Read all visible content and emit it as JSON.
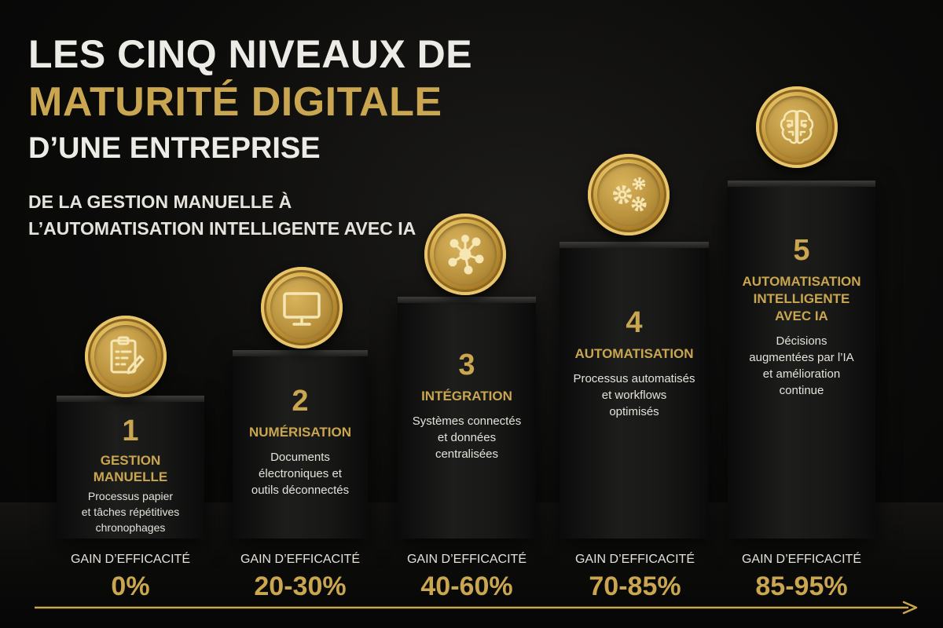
{
  "title": {
    "line1": "Les cinq niveaux de",
    "line2": "Maturité digitale",
    "line3": "d’une entreprise"
  },
  "subtitle": {
    "line1": "De la gestion manuelle à",
    "line2": "l’automatisation intelligente avec IA"
  },
  "colors": {
    "gold": "#c9a64f",
    "background": "#0b0b0a",
    "text": "#ecebe6"
  },
  "gain_label": "Gain d’efficacité",
  "levels": [
    {
      "number": "1",
      "name_lines": [
        "Gestion",
        "manuelle"
      ],
      "desc_lines": [
        "Processus papier",
        "et tâches répétitives",
        "chronophages"
      ],
      "icon": "clipboard-icon",
      "gain": "0%"
    },
    {
      "number": "2",
      "name_lines": [
        "Numérisation"
      ],
      "desc_lines": [
        "Documents",
        "électroniques et",
        "outils déconnectés"
      ],
      "icon": "monitor-icon",
      "gain": "20-30%"
    },
    {
      "number": "3",
      "name_lines": [
        "Intégration"
      ],
      "desc_lines": [
        "Systèmes connectés",
        "et données",
        "centralisées"
      ],
      "icon": "network-icon",
      "gain": "40-60%"
    },
    {
      "number": "4",
      "name_lines": [
        "Automatisation"
      ],
      "desc_lines": [
        "Processus automatisés",
        "et workflows",
        "optimisés"
      ],
      "icon": "gears-icon",
      "gain": "70-85%"
    },
    {
      "number": "5",
      "name_lines": [
        "Automatisation",
        "intelligente",
        "avec IA"
      ],
      "desc_lines": [
        "Décisions",
        "augmentées par l’IA",
        "et amélioration",
        "continue"
      ],
      "icon": "brain-icon",
      "gain": "85-95%"
    }
  ]
}
